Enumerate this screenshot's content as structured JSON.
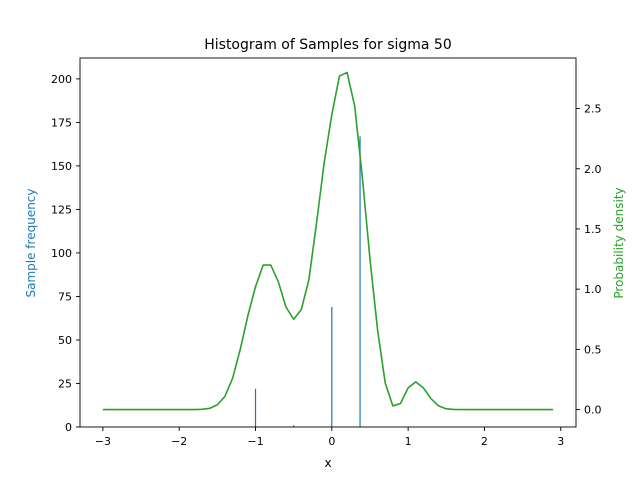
{
  "chart_data": {
    "type": "bar+line",
    "title": "Histogram of Samples for sigma 50",
    "xlabel": "x",
    "ylabel_left": "Sample frequency",
    "ylabel_right": "Probability density",
    "xlim": [
      -3.3,
      3.2
    ],
    "ylim_left": [
      0,
      212
    ],
    "ylim_right": [
      -0.145,
      2.92
    ],
    "x_ticks": [
      -3,
      -2,
      -1,
      0,
      1,
      2,
      3
    ],
    "x_tick_labels": [
      "−3",
      "−2",
      "−1",
      "0",
      "1",
      "2",
      "3"
    ],
    "y_left_ticks": [
      0,
      25,
      50,
      75,
      100,
      125,
      150,
      175,
      200
    ],
    "y_left_tick_labels": [
      "0",
      "25",
      "50",
      "75",
      "100",
      "125",
      "150",
      "175",
      "200"
    ],
    "y_right_ticks": [
      0.0,
      0.5,
      1.0,
      1.5,
      2.0,
      2.5
    ],
    "y_right_tick_labels": [
      "0.0",
      "0.5",
      "1.0",
      "1.5",
      "2.0",
      "2.5"
    ],
    "colors": {
      "histogram": "#1f77b4",
      "density": "#2ca02c",
      "left_label": "#1f77b4",
      "right_label": "#2ca02c",
      "axes": "#000000"
    },
    "histogram": {
      "x": [
        -1.0,
        -0.5,
        0.0,
        0.37
      ],
      "values": [
        22,
        1,
        69,
        167
      ]
    },
    "density": {
      "x": [
        -3.0,
        -2.9,
        -2.8,
        -2.7,
        -2.6,
        -2.5,
        -2.4,
        -2.3,
        -2.2,
        -2.1,
        -2.0,
        -1.9,
        -1.8,
        -1.7,
        -1.6,
        -1.5,
        -1.4,
        -1.3,
        -1.2,
        -1.1,
        -1.0,
        -0.9,
        -0.8,
        -0.7,
        -0.6,
        -0.5,
        -0.4,
        -0.3,
        -0.2,
        -0.1,
        0.0,
        0.1,
        0.2,
        0.3,
        0.4,
        0.5,
        0.6,
        0.7,
        0.8,
        0.9,
        1.0,
        1.1,
        1.2,
        1.3,
        1.4,
        1.5,
        1.6,
        1.7,
        1.8,
        1.9,
        2.0,
        2.1,
        2.2,
        2.3,
        2.4,
        2.5,
        2.6,
        2.7,
        2.8,
        2.9
      ],
      "y": [
        0.0,
        0.0,
        0.0,
        0.0,
        0.0,
        0.0,
        0.0,
        0.0,
        0.0,
        0.0,
        0.0,
        0.0,
        0.0,
        0.002,
        0.01,
        0.04,
        0.11,
        0.26,
        0.5,
        0.78,
        1.02,
        1.2,
        1.2,
        1.06,
        0.85,
        0.75,
        0.83,
        1.08,
        1.55,
        2.05,
        2.45,
        2.77,
        2.8,
        2.52,
        1.93,
        1.25,
        0.66,
        0.22,
        0.03,
        0.05,
        0.18,
        0.23,
        0.18,
        0.09,
        0.03,
        0.006,
        0.001,
        0.0,
        0.0,
        0.0,
        0.0,
        0.0,
        0.0,
        0.0,
        0.0,
        0.0,
        0.0,
        0.0,
        0.0,
        0.0
      ]
    },
    "grid": false,
    "legend": "none"
  }
}
